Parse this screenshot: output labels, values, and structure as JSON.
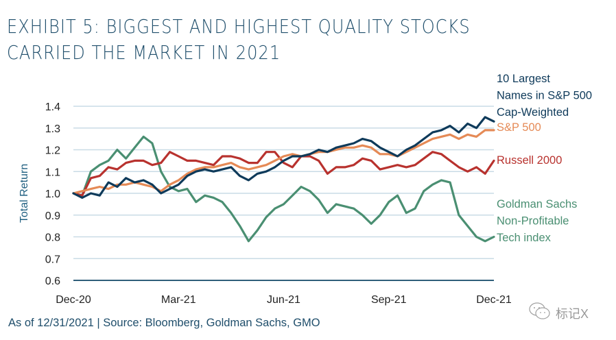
{
  "title_lines": [
    "EXHIBIT 5: BIGGEST AND HIGHEST QUALITY STOCKS",
    "CARRIED THE MARKET IN 2021"
  ],
  "footer": "As of 12/31/2021 | Source: Bloomberg, Goldman Sachs, GMO",
  "watermark": {
    "icon": "wechat-icon",
    "text": "标记X"
  },
  "chart_data": {
    "type": "line",
    "title": "EXHIBIT 5: BIGGEST AND HIGHEST QUALITY STOCKS CARRIED THE MARKET IN 2021",
    "xlabel": "",
    "ylabel": "Total Return",
    "x_unit": "months since Dec-20",
    "xlim": [
      0,
      12
    ],
    "ylim": [
      0.6,
      1.4
    ],
    "yticks": [
      0.6,
      0.7,
      0.8,
      0.9,
      1.0,
      1.1,
      1.2,
      1.3,
      1.4
    ],
    "ytick_labels": [
      "0.6",
      "0.7",
      "0.8",
      "0.9",
      "1.0",
      "1.1",
      "1.2",
      "1.3",
      "1.4"
    ],
    "xticks": [
      0,
      3,
      6,
      9,
      12
    ],
    "xtick_labels": [
      "Dec-20",
      "Mar-21",
      "Jun-21",
      "Sep-21",
      "Dec-21"
    ],
    "grid": "horizontal",
    "legend": "right, inline labels at series ends",
    "x": [
      0,
      0.25,
      0.5,
      0.75,
      1,
      1.25,
      1.5,
      1.75,
      2,
      2.25,
      2.5,
      2.75,
      3,
      3.25,
      3.5,
      3.75,
      4,
      4.25,
      4.5,
      4.75,
      5,
      5.25,
      5.5,
      5.75,
      6,
      6.25,
      6.5,
      6.75,
      7,
      7.25,
      7.5,
      7.75,
      8,
      8.25,
      8.5,
      8.75,
      9,
      9.25,
      9.5,
      9.75,
      10,
      10.25,
      10.5,
      10.75,
      11,
      11.25,
      11.5,
      11.75,
      12
    ],
    "series": [
      {
        "name": "10 Largest Names in S&P 500 Cap-Weighted",
        "legend_lines": [
          "10 Largest",
          "Names in S&P 500",
          "Cap-Weighted"
        ],
        "color": "#0e3a5a",
        "values": [
          1.0,
          0.98,
          1.0,
          0.99,
          1.05,
          1.03,
          1.07,
          1.05,
          1.06,
          1.04,
          1.0,
          1.02,
          1.04,
          1.08,
          1.1,
          1.11,
          1.1,
          1.11,
          1.12,
          1.08,
          1.06,
          1.09,
          1.1,
          1.12,
          1.15,
          1.17,
          1.17,
          1.18,
          1.2,
          1.19,
          1.21,
          1.22,
          1.23,
          1.25,
          1.24,
          1.21,
          1.19,
          1.17,
          1.2,
          1.22,
          1.25,
          1.28,
          1.29,
          1.31,
          1.28,
          1.32,
          1.3,
          1.35,
          1.33
        ]
      },
      {
        "name": "S&P 500",
        "legend_lines": [
          "S&P 500"
        ],
        "color": "#e58a56",
        "values": [
          1.0,
          1.01,
          1.02,
          1.03,
          1.02,
          1.04,
          1.04,
          1.05,
          1.04,
          1.03,
          1.01,
          1.04,
          1.06,
          1.09,
          1.11,
          1.12,
          1.12,
          1.13,
          1.14,
          1.12,
          1.11,
          1.12,
          1.13,
          1.15,
          1.17,
          1.18,
          1.17,
          1.18,
          1.19,
          1.19,
          1.2,
          1.21,
          1.21,
          1.22,
          1.21,
          1.18,
          1.18,
          1.17,
          1.19,
          1.21,
          1.23,
          1.25,
          1.26,
          1.27,
          1.25,
          1.27,
          1.26,
          1.29,
          1.29
        ]
      },
      {
        "name": "Russell 2000",
        "legend_lines": [
          "Russell 2000"
        ],
        "color": "#b8322e",
        "values": [
          1.0,
          0.99,
          1.07,
          1.08,
          1.12,
          1.11,
          1.14,
          1.15,
          1.15,
          1.13,
          1.14,
          1.19,
          1.17,
          1.15,
          1.15,
          1.14,
          1.13,
          1.17,
          1.17,
          1.16,
          1.14,
          1.14,
          1.19,
          1.19,
          1.14,
          1.12,
          1.17,
          1.17,
          1.15,
          1.09,
          1.12,
          1.12,
          1.13,
          1.16,
          1.15,
          1.11,
          1.12,
          1.13,
          1.12,
          1.13,
          1.16,
          1.19,
          1.18,
          1.15,
          1.12,
          1.1,
          1.12,
          1.09,
          1.15
        ]
      },
      {
        "name": "Goldman Sachs Non-Profitable Tech index",
        "legend_lines": [
          "Goldman Sachs",
          "Non-Profitable",
          "Tech index"
        ],
        "color": "#4a8f72",
        "values": [
          1.0,
          0.99,
          1.1,
          1.13,
          1.15,
          1.2,
          1.16,
          1.21,
          1.26,
          1.23,
          1.1,
          1.03,
          1.01,
          1.02,
          0.96,
          0.99,
          0.98,
          0.96,
          0.91,
          0.85,
          0.78,
          0.83,
          0.89,
          0.93,
          0.95,
          0.99,
          1.03,
          1.01,
          0.97,
          0.91,
          0.95,
          0.94,
          0.93,
          0.9,
          0.86,
          0.9,
          0.96,
          0.99,
          0.91,
          0.93,
          1.01,
          1.04,
          1.06,
          1.05,
          0.9,
          0.85,
          0.8,
          0.78,
          0.8
        ]
      }
    ]
  }
}
